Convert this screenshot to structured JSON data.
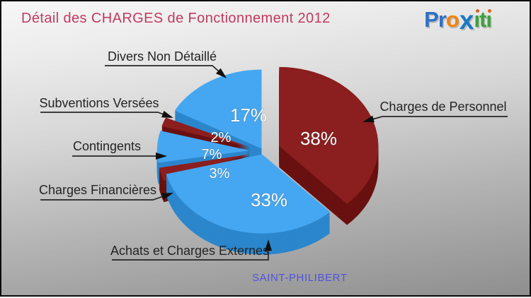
{
  "header": {
    "title": "Détail des CHARGES de Fonctionnement 2012",
    "title_color": "#c23a60"
  },
  "logo": {
    "name": "proxiti",
    "parts": [
      {
        "text": "Pr",
        "color": "#2e70c8"
      },
      {
        "text": "o",
        "color": "#f5820d"
      },
      {
        "text": "x",
        "color": "#1c78c4"
      },
      {
        "text": "iti",
        "color": "#3ba23c",
        "dot_color": "#e2621b"
      }
    ]
  },
  "footer": {
    "municipality": "SAINT-PHILIBERT",
    "color": "#5252e0"
  },
  "chart_data": {
    "type": "pie",
    "style": "3d-exploded",
    "title": "Détail des CHARGES de Fonctionnement 2012",
    "unit": "%",
    "start_angle_deg": 0,
    "direction": "clockwise",
    "pct_text_color": "#fdfdfd",
    "slices": [
      {
        "label": "Charges de Personnel",
        "value": 38,
        "pct_label": "38%",
        "color": "#8B1E1E",
        "side_color": "#691111"
      },
      {
        "label": "Achats et Charges Externes",
        "value": 33,
        "pct_label": "33%",
        "color": "#45A7F1",
        "side_color": "#2B86CC"
      },
      {
        "label": "Charges Financières",
        "value": 3,
        "pct_label": "3%",
        "color": "#8B1E1E",
        "side_color": "#691111"
      },
      {
        "label": "Contingents",
        "value": 7,
        "pct_label": "7%",
        "color": "#45A7F1",
        "side_color": "#2B86CC"
      },
      {
        "label": "Subventions Versées",
        "value": 2,
        "pct_label": "2%",
        "color": "#8B1E1E",
        "side_color": "#691111"
      },
      {
        "label": "Divers Non Détaillé",
        "value": 17,
        "pct_label": "17%",
        "color": "#45A7F1",
        "side_color": "#2B86CC"
      }
    ]
  }
}
